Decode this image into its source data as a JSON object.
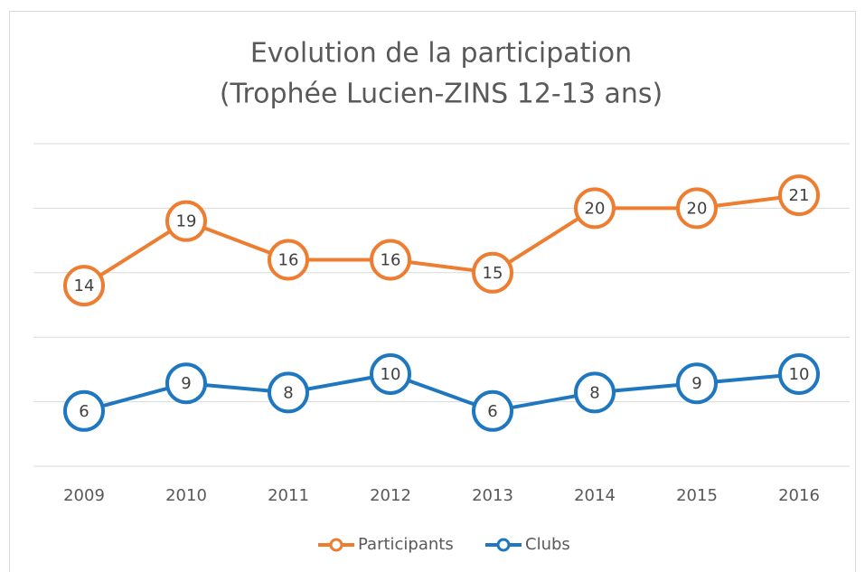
{
  "chart_data": {
    "type": "line",
    "title": "Evolution de la participation",
    "subtitle": "(Trophée Lucien-ZINS 12-13 ans)",
    "categories": [
      "2009",
      "2010",
      "2011",
      "2012",
      "2013",
      "2014",
      "2015",
      "2016"
    ],
    "series": [
      {
        "name": "Participants",
        "color": "#ed7d31",
        "values": [
          14,
          19,
          16,
          16,
          15,
          20,
          20,
          21
        ]
      },
      {
        "name": "Clubs",
        "color": "#1f77c0",
        "axis": "y2",
        "values": [
          6,
          9,
          8,
          10,
          6,
          8,
          9,
          10
        ]
      }
    ],
    "ylim": [
      0,
      25
    ],
    "yticks": [
      0,
      5,
      10,
      15,
      20,
      25
    ],
    "y2lim": [
      0,
      35
    ],
    "grid": true,
    "legend": "bottom"
  }
}
